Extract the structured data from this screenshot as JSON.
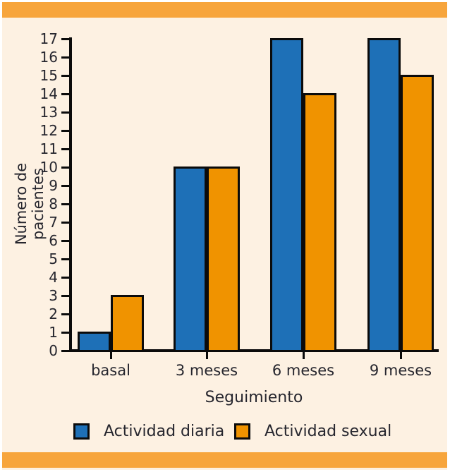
{
  "figure": {
    "band_color": "#f7a53c",
    "panel_color": "#fdf1e2",
    "axis_color": "#0b0b0b",
    "text_color": "#26262e"
  },
  "chart_data": {
    "type": "bar",
    "title": "",
    "categories": [
      "basal",
      "3 meses",
      "6 meses",
      "9 meses"
    ],
    "series": [
      {
        "name": "Actividad diaria",
        "color": "#1e70b7",
        "values": [
          1,
          10,
          17,
          17
        ]
      },
      {
        "name": "Actividad sexual",
        "color": "#f09300",
        "values": [
          3,
          10,
          14,
          15
        ]
      }
    ],
    "xlabel": "Seguimiento",
    "ylabel": "Número de pacientes",
    "ylim": [
      0,
      17
    ],
    "ytick_step": 1,
    "grid": false,
    "legend_position": "bottom"
  }
}
